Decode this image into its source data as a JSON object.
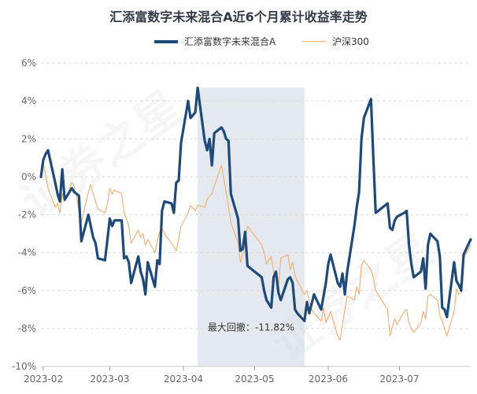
{
  "watermark": "证券之星",
  "colors": {
    "primary": "#1f4a78",
    "benchmark": "#f0b27a",
    "grid": "#dddddd",
    "drawdown": "#d0dbe5",
    "tick_text": "#666666"
  },
  "chart_data": {
    "type": "line",
    "title": "汇添富数字未来混合A近6个月累计收益率走势",
    "xlabel": "",
    "ylabel": "",
    "y_unit": "%",
    "ylim": [
      -10,
      6
    ],
    "yticks": [
      6,
      4,
      2,
      0,
      -2,
      -4,
      -6,
      -8,
      -10
    ],
    "ytick_labels": [
      "6%",
      "4%",
      "2%",
      "0%",
      "-2%",
      "-4%",
      "-6%",
      "-8%",
      "-10%"
    ],
    "x_start": "2023-01-31",
    "x_end": "2023-07-31",
    "x_ticks": [
      "2023-02-01",
      "2023-03-01",
      "2023-04-01",
      "2023-05-01",
      "2023-06-01",
      "2023-07-01"
    ],
    "x_tick_labels": [
      "2023-02",
      "2023-03",
      "2023-04",
      "2023-05",
      "2023-06",
      "2023-07"
    ],
    "legend_position": "top-center",
    "series": [
      {
        "name": "汇添富数字未来混合A",
        "color": "#1f4a78",
        "points": [
          [
            "2023-01-31",
            0.0
          ],
          [
            "2023-02-01",
            0.9
          ],
          [
            "2023-02-02",
            1.2
          ],
          [
            "2023-02-03",
            1.4
          ],
          [
            "2023-02-06",
            -0.3
          ],
          [
            "2023-02-07",
            -0.9
          ],
          [
            "2023-02-08",
            -1.3
          ],
          [
            "2023-02-09",
            0.4
          ],
          [
            "2023-02-10",
            -1.2
          ],
          [
            "2023-02-13",
            -0.6
          ],
          [
            "2023-02-14",
            -0.8
          ],
          [
            "2023-02-15",
            -0.9
          ],
          [
            "2023-02-16",
            -1.0
          ],
          [
            "2023-02-17",
            -3.4
          ],
          [
            "2023-02-20",
            -2.0
          ],
          [
            "2023-02-21",
            -2.6
          ],
          [
            "2023-02-22",
            -3.2
          ],
          [
            "2023-02-23",
            -3.5
          ],
          [
            "2023-02-24",
            -4.3
          ],
          [
            "2023-02-27",
            -4.4
          ],
          [
            "2023-02-28",
            -3.3
          ],
          [
            "2023-03-01",
            -2.2
          ],
          [
            "2023-03-02",
            -2.6
          ],
          [
            "2023-03-03",
            -2.3
          ],
          [
            "2023-03-06",
            -2.3
          ],
          [
            "2023-03-07",
            -4.3
          ],
          [
            "2023-03-08",
            -4.2
          ],
          [
            "2023-03-09",
            -4.5
          ],
          [
            "2023-03-10",
            -5.6
          ],
          [
            "2023-03-13",
            -4.2
          ],
          [
            "2023-03-14",
            -5.0
          ],
          [
            "2023-03-15",
            -5.4
          ],
          [
            "2023-03-16",
            -6.2
          ],
          [
            "2023-03-17",
            -4.5
          ],
          [
            "2023-03-20",
            -5.8
          ],
          [
            "2023-03-21",
            -4.4
          ],
          [
            "2023-03-22",
            -4.6
          ],
          [
            "2023-03-23",
            -1.8
          ],
          [
            "2023-03-24",
            -1.3
          ],
          [
            "2023-03-27",
            -1.4
          ],
          [
            "2023-03-28",
            -1.9
          ],
          [
            "2023-03-29",
            -0.3
          ],
          [
            "2023-03-30",
            -0.2
          ],
          [
            "2023-03-31",
            1.8
          ],
          [
            "2023-04-03",
            4.0
          ],
          [
            "2023-04-04",
            3.1
          ],
          [
            "2023-04-06",
            3.4
          ],
          [
            "2023-04-07",
            4.7
          ],
          [
            "2023-04-10",
            1.9
          ],
          [
            "2023-04-11",
            1.4
          ],
          [
            "2023-04-12",
            2.0
          ],
          [
            "2023-04-13",
            0.6
          ],
          [
            "2023-04-14",
            2.3
          ],
          [
            "2023-04-17",
            2.6
          ],
          [
            "2023-04-18",
            2.4
          ],
          [
            "2023-04-19",
            2.0
          ],
          [
            "2023-04-20",
            1.9
          ],
          [
            "2023-04-21",
            -0.9
          ],
          [
            "2023-04-24",
            -2.2
          ],
          [
            "2023-04-25",
            -3.9
          ],
          [
            "2023-04-26",
            -3.8
          ],
          [
            "2023-04-27",
            -2.9
          ],
          [
            "2023-04-28",
            -4.7
          ],
          [
            "2023-05-04",
            -5.3
          ],
          [
            "2023-05-05",
            -6.0
          ],
          [
            "2023-05-06",
            -6.5
          ],
          [
            "2023-05-08",
            -6.9
          ],
          [
            "2023-05-09",
            -5.3
          ],
          [
            "2023-05-10",
            -5.0
          ],
          [
            "2023-05-11",
            -6.1
          ],
          [
            "2023-05-12",
            -6.5
          ],
          [
            "2023-05-15",
            -5.4
          ],
          [
            "2023-05-16",
            -5.3
          ],
          [
            "2023-05-17",
            -5.6
          ],
          [
            "2023-05-18",
            -7.0
          ],
          [
            "2023-05-19",
            -7.2
          ],
          [
            "2023-05-22",
            -7.6
          ],
          [
            "2023-05-23",
            -6.6
          ],
          [
            "2023-05-24",
            -7.2
          ],
          [
            "2023-05-25",
            -6.7
          ],
          [
            "2023-05-26",
            -6.2
          ],
          [
            "2023-05-29",
            -7.0
          ],
          [
            "2023-05-30",
            -6.3
          ],
          [
            "2023-05-31",
            -5.6
          ],
          [
            "2023-06-01",
            -4.6
          ],
          [
            "2023-06-02",
            -4.1
          ],
          [
            "2023-06-05",
            -5.6
          ],
          [
            "2023-06-06",
            -5.8
          ],
          [
            "2023-06-07",
            -5.1
          ],
          [
            "2023-06-08",
            -6.2
          ],
          [
            "2023-06-09",
            -5.0
          ],
          [
            "2023-06-12",
            -2.6
          ],
          [
            "2023-06-13",
            -1.6
          ],
          [
            "2023-06-14",
            -0.8
          ],
          [
            "2023-06-15",
            2.0
          ],
          [
            "2023-06-16",
            3.1
          ],
          [
            "2023-06-19",
            4.1
          ],
          [
            "2023-06-20",
            1.0
          ],
          [
            "2023-06-21",
            -1.9
          ],
          [
            "2023-06-26",
            -1.4
          ],
          [
            "2023-06-27",
            -2.7
          ],
          [
            "2023-06-28",
            -2.8
          ],
          [
            "2023-06-29",
            -2.3
          ],
          [
            "2023-06-30",
            -2.1
          ],
          [
            "2023-07-03",
            -1.9
          ],
          [
            "2023-07-04",
            -1.8
          ],
          [
            "2023-07-05",
            -3.6
          ],
          [
            "2023-07-06",
            -4.6
          ],
          [
            "2023-07-07",
            -5.3
          ],
          [
            "2023-07-10",
            -5.0
          ],
          [
            "2023-07-11",
            -4.3
          ],
          [
            "2023-07-12",
            -5.9
          ],
          [
            "2023-07-13",
            -3.6
          ],
          [
            "2023-07-14",
            -3.0
          ],
          [
            "2023-07-17",
            -3.4
          ],
          [
            "2023-07-18",
            -4.2
          ],
          [
            "2023-07-19",
            -6.9
          ],
          [
            "2023-07-20",
            -7.0
          ],
          [
            "2023-07-21",
            -7.4
          ],
          [
            "2023-07-24",
            -4.5
          ],
          [
            "2023-07-25",
            -5.5
          ],
          [
            "2023-07-26",
            -5.7
          ],
          [
            "2023-07-27",
            -6.0
          ],
          [
            "2023-07-28",
            -4.1
          ],
          [
            "2023-07-31",
            -3.3
          ]
        ]
      },
      {
        "name": "沪深300",
        "color": "#f0b27a",
        "points": [
          [
            "2023-01-31",
            0.0
          ],
          [
            "2023-02-01",
            0.7
          ],
          [
            "2023-02-02",
            0.1
          ],
          [
            "2023-02-03",
            -0.6
          ],
          [
            "2023-02-06",
            -1.6
          ],
          [
            "2023-02-07",
            -1.4
          ],
          [
            "2023-02-08",
            -1.9
          ],
          [
            "2023-02-09",
            -0.9
          ],
          [
            "2023-02-10",
            -1.3
          ],
          [
            "2023-02-13",
            -0.3
          ],
          [
            "2023-02-14",
            -0.5
          ],
          [
            "2023-02-15",
            -1.0
          ],
          [
            "2023-02-16",
            -1.8
          ],
          [
            "2023-02-17",
            -2.4
          ],
          [
            "2023-02-20",
            -0.8
          ],
          [
            "2023-02-21",
            -0.4
          ],
          [
            "2023-02-22",
            -0.9
          ],
          [
            "2023-02-23",
            -1.3
          ],
          [
            "2023-02-24",
            -1.7
          ],
          [
            "2023-02-27",
            -1.9
          ],
          [
            "2023-02-28",
            -1.4
          ],
          [
            "2023-03-01",
            -0.6
          ],
          [
            "2023-03-02",
            -0.9
          ],
          [
            "2023-03-03",
            -0.7
          ],
          [
            "2023-03-06",
            -0.9
          ],
          [
            "2023-03-07",
            -1.9
          ],
          [
            "2023-03-08",
            -2.2
          ],
          [
            "2023-03-09",
            -2.6
          ],
          [
            "2023-03-10",
            -3.5
          ],
          [
            "2023-03-13",
            -2.8
          ],
          [
            "2023-03-14",
            -3.2
          ],
          [
            "2023-03-15",
            -3.0
          ],
          [
            "2023-03-16",
            -3.6
          ],
          [
            "2023-03-17",
            -3.3
          ],
          [
            "2023-03-20",
            -4.0
          ],
          [
            "2023-03-21",
            -3.4
          ],
          [
            "2023-03-22",
            -2.9
          ],
          [
            "2023-03-23",
            -2.7
          ],
          [
            "2023-03-24",
            -3.0
          ],
          [
            "2023-03-27",
            -3.5
          ],
          [
            "2023-03-28",
            -3.7
          ],
          [
            "2023-03-29",
            -3.9
          ],
          [
            "2023-03-30",
            -3.3
          ],
          [
            "2023-03-31",
            -2.6
          ],
          [
            "2023-04-03",
            -1.9
          ],
          [
            "2023-04-04",
            -1.5
          ],
          [
            "2023-04-06",
            -1.8
          ],
          [
            "2023-04-07",
            -1.5
          ],
          [
            "2023-04-10",
            -1.6
          ],
          [
            "2023-04-11",
            -1.2
          ],
          [
            "2023-04-12",
            -1.0
          ],
          [
            "2023-04-13",
            -0.9
          ],
          [
            "2023-04-14",
            -0.5
          ],
          [
            "2023-04-17",
            0.6
          ],
          [
            "2023-04-18",
            -0.1
          ],
          [
            "2023-04-19",
            -0.8
          ],
          [
            "2023-04-20",
            -1.6
          ],
          [
            "2023-04-21",
            -2.4
          ],
          [
            "2023-04-24",
            -3.5
          ],
          [
            "2023-04-25",
            -4.5
          ],
          [
            "2023-04-26",
            -4.1
          ],
          [
            "2023-04-27",
            -3.5
          ],
          [
            "2023-04-28",
            -2.6
          ],
          [
            "2023-05-04",
            -3.6
          ],
          [
            "2023-05-05",
            -4.0
          ],
          [
            "2023-05-06",
            -4.6
          ],
          [
            "2023-05-08",
            -4.2
          ],
          [
            "2023-05-09",
            -5.0
          ],
          [
            "2023-05-10",
            -5.4
          ],
          [
            "2023-05-11",
            -5.8
          ],
          [
            "2023-05-12",
            -4.3
          ],
          [
            "2023-05-15",
            -4.1
          ],
          [
            "2023-05-16",
            -4.9
          ],
          [
            "2023-05-17",
            -4.5
          ],
          [
            "2023-05-18",
            -5.2
          ],
          [
            "2023-05-19",
            -5.5
          ],
          [
            "2023-05-22",
            -6.2
          ],
          [
            "2023-05-23",
            -6.0
          ],
          [
            "2023-05-24",
            -6.6
          ],
          [
            "2023-05-25",
            -7.0
          ],
          [
            "2023-05-26",
            -7.2
          ],
          [
            "2023-05-29",
            -7.6
          ],
          [
            "2023-05-30",
            -6.9
          ],
          [
            "2023-05-31",
            -7.7
          ],
          [
            "2023-06-01",
            -7.4
          ],
          [
            "2023-06-02",
            -7.1
          ],
          [
            "2023-06-05",
            -8.4
          ],
          [
            "2023-06-06",
            -8.6
          ],
          [
            "2023-06-07",
            -7.8
          ],
          [
            "2023-06-08",
            -7.0
          ],
          [
            "2023-06-09",
            -6.3
          ],
          [
            "2023-06-12",
            -6.5
          ],
          [
            "2023-06-13",
            -5.8
          ],
          [
            "2023-06-14",
            -6.2
          ],
          [
            "2023-06-15",
            -4.7
          ],
          [
            "2023-06-16",
            -4.4
          ],
          [
            "2023-06-19",
            -4.9
          ],
          [
            "2023-06-20",
            -5.3
          ],
          [
            "2023-06-21",
            -6.0
          ],
          [
            "2023-06-26",
            -7.0
          ],
          [
            "2023-06-27",
            -8.4
          ],
          [
            "2023-06-28",
            -7.9
          ],
          [
            "2023-06-29",
            -7.5
          ],
          [
            "2023-06-30",
            -7.8
          ],
          [
            "2023-07-03",
            -7.1
          ],
          [
            "2023-07-04",
            -7.0
          ],
          [
            "2023-07-05",
            -7.7
          ],
          [
            "2023-07-06",
            -8.0
          ],
          [
            "2023-07-07",
            -8.2
          ],
          [
            "2023-07-10",
            -7.7
          ],
          [
            "2023-07-11",
            -7.1
          ],
          [
            "2023-07-12",
            -7.5
          ],
          [
            "2023-07-13",
            -6.3
          ],
          [
            "2023-07-14",
            -6.2
          ],
          [
            "2023-07-17",
            -6.5
          ],
          [
            "2023-07-18",
            -7.3
          ],
          [
            "2023-07-19",
            -7.6
          ],
          [
            "2023-07-20",
            -8.0
          ],
          [
            "2023-07-21",
            -8.4
          ],
          [
            "2023-07-24",
            -7.1
          ],
          [
            "2023-07-25",
            -5.9
          ],
          [
            "2023-07-26",
            -6.2
          ],
          [
            "2023-07-27",
            -6.1
          ],
          [
            "2023-07-28",
            -4.3
          ],
          [
            "2023-07-31",
            -3.6
          ]
        ]
      }
    ],
    "drawdown": {
      "label": "最大回撤：-11.82%",
      "start": "2023-04-07",
      "end": "2023-05-22",
      "value": -11.82
    }
  }
}
